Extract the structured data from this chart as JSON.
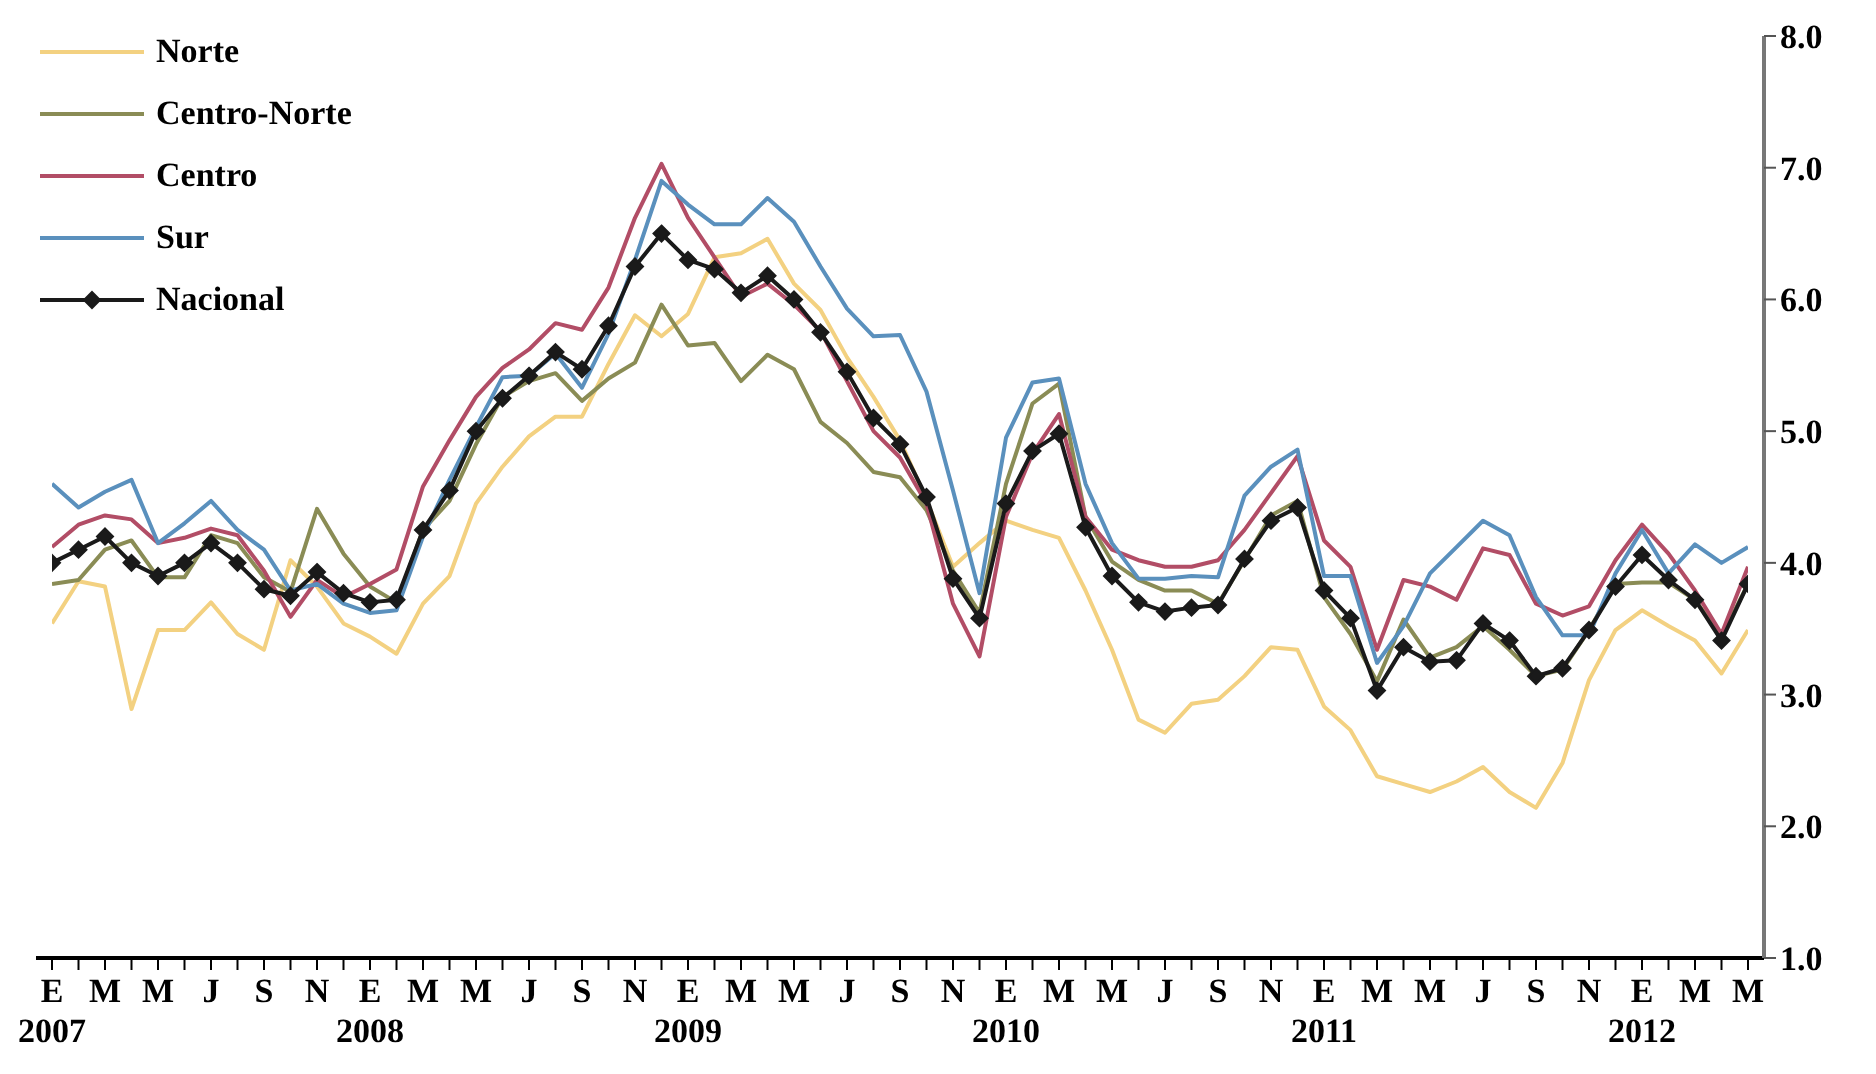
{
  "chart_data": {
    "type": "line",
    "categories": [
      "E\n2007",
      null,
      "M",
      null,
      "M",
      null,
      "J",
      null,
      "S",
      null,
      "N",
      null,
      "E\n2008",
      null,
      "M",
      null,
      "M",
      null,
      "J",
      null,
      "S",
      null,
      "N",
      null,
      "E\n2009",
      null,
      "M",
      null,
      "M",
      null,
      "J",
      null,
      "S",
      null,
      "N",
      null,
      "E\n2010",
      null,
      "M",
      null,
      "M",
      null,
      "J",
      null,
      "S",
      null,
      "N",
      null,
      "E\n2011",
      null,
      "M",
      null,
      "M",
      null,
      "J",
      null,
      "S",
      null,
      "N",
      null,
      "E\n2012",
      null,
      "M",
      null,
      "M"
    ],
    "series": [
      {
        "name": "Norte",
        "color": "#f3d181",
        "marker": "none",
        "values": [
          3.54,
          3.86,
          3.82,
          2.89,
          3.49,
          3.49,
          3.7,
          3.46,
          3.34,
          4.02,
          3.82,
          3.54,
          3.44,
          3.31,
          3.69,
          3.9,
          4.45,
          4.73,
          4.96,
          5.11,
          5.11,
          5.51,
          5.88,
          5.72,
          5.89,
          6.32,
          6.35,
          6.46,
          6.12,
          5.92,
          5.56,
          5.26,
          4.93,
          4.48,
          3.97,
          4.15,
          4.32,
          4.25,
          4.19,
          3.79,
          3.34,
          2.81,
          2.71,
          2.93,
          2.96,
          3.14,
          3.36,
          3.34,
          2.91,
          2.73,
          2.38,
          2.32,
          2.26,
          2.34,
          2.45,
          2.26,
          2.14,
          2.48,
          3.11,
          3.49,
          3.64,
          3.52,
          3.41,
          3.16,
          3.49
        ]
      },
      {
        "name": "Centro-Norte",
        "color": "#8a8c55",
        "marker": "none",
        "values": [
          3.84,
          3.87,
          4.1,
          4.17,
          3.89,
          3.89,
          4.21,
          4.15,
          3.89,
          3.78,
          4.41,
          4.07,
          3.82,
          3.7,
          4.25,
          4.47,
          4.9,
          5.26,
          5.38,
          5.44,
          5.23,
          5.4,
          5.52,
          5.96,
          5.65,
          5.67,
          5.38,
          5.58,
          5.47,
          5.07,
          4.91,
          4.69,
          4.65,
          4.4,
          3.94,
          3.62,
          4.6,
          5.21,
          5.36,
          4.35,
          4.01,
          3.87,
          3.79,
          3.79,
          3.69,
          4.02,
          4.36,
          4.47,
          3.74,
          3.46,
          3.1,
          3.57,
          3.28,
          3.36,
          3.52,
          3.34,
          3.14,
          3.19,
          3.49,
          3.84,
          3.85,
          3.85,
          3.72,
          3.44,
          3.84
        ]
      },
      {
        "name": "Centro",
        "color": "#b24d66",
        "marker": "none",
        "values": [
          4.12,
          4.29,
          4.36,
          4.33,
          4.15,
          4.19,
          4.26,
          4.21,
          3.94,
          3.59,
          3.87,
          3.74,
          3.84,
          3.95,
          4.58,
          4.93,
          5.26,
          5.48,
          5.62,
          5.82,
          5.77,
          6.09,
          6.62,
          7.03,
          6.62,
          6.32,
          6.02,
          6.12,
          5.96,
          5.76,
          5.38,
          5.0,
          4.8,
          4.45,
          3.69,
          3.29,
          4.35,
          4.83,
          5.13,
          4.35,
          4.1,
          4.02,
          3.97,
          3.97,
          4.02,
          4.25,
          4.53,
          4.81,
          4.17,
          3.97,
          3.34,
          3.87,
          3.82,
          3.72,
          4.11,
          4.06,
          3.69,
          3.6,
          3.67,
          4.02,
          4.29,
          4.07,
          3.79,
          3.46,
          3.97
        ]
      },
      {
        "name": "Sur",
        "color": "#5a90bd",
        "marker": "none",
        "values": [
          4.6,
          4.42,
          4.54,
          4.63,
          4.15,
          4.3,
          4.47,
          4.25,
          4.1,
          3.79,
          3.84,
          3.69,
          3.62,
          3.64,
          4.2,
          4.63,
          5.03,
          5.41,
          5.42,
          5.59,
          5.33,
          5.74,
          6.3,
          6.9,
          6.72,
          6.57,
          6.57,
          6.77,
          6.59,
          6.25,
          5.93,
          5.72,
          5.73,
          5.3,
          4.55,
          3.77,
          4.95,
          5.37,
          5.4,
          4.6,
          4.15,
          3.88,
          3.88,
          3.9,
          3.89,
          4.51,
          4.73,
          4.86,
          3.9,
          3.9,
          3.24,
          3.52,
          3.92,
          4.12,
          4.32,
          4.21,
          3.74,
          3.45,
          3.45,
          3.92,
          4.25,
          3.92,
          4.14,
          4.0,
          4.12
        ]
      },
      {
        "name": "Nacional",
        "color": "#1a1a1a",
        "marker": "diamond",
        "values": [
          4.0,
          4.1,
          4.2,
          4.0,
          3.9,
          4.0,
          4.15,
          4.0,
          3.8,
          3.75,
          3.93,
          3.77,
          3.7,
          3.72,
          4.25,
          4.55,
          5.0,
          5.25,
          5.42,
          5.6,
          5.47,
          5.8,
          6.25,
          6.5,
          6.3,
          6.23,
          6.05,
          6.18,
          6.0,
          5.75,
          5.45,
          5.1,
          4.9,
          4.5,
          3.88,
          3.58,
          4.45,
          4.85,
          4.98,
          4.27,
          3.9,
          3.7,
          3.63,
          3.66,
          3.68,
          4.03,
          4.32,
          4.42,
          3.79,
          3.58,
          3.03,
          3.36,
          3.25,
          3.26,
          3.54,
          3.41,
          3.14,
          3.2,
          3.49,
          3.82,
          4.06,
          3.87,
          3.72,
          3.41,
          3.84
        ]
      }
    ],
    "ylim": [
      1,
      8
    ],
    "yticks": [
      {
        "value": 1,
        "label": "1.0"
      },
      {
        "value": 2,
        "label": "2.0"
      },
      {
        "value": 3,
        "label": "3.0"
      },
      {
        "value": 4,
        "label": "4.0"
      },
      {
        "value": 5,
        "label": "5.0"
      },
      {
        "value": 6,
        "label": "6.0"
      },
      {
        "value": 7,
        "label": "7.0"
      },
      {
        "value": 8,
        "label": "8.0"
      }
    ],
    "grid": false,
    "legend": "top left",
    "line_style": "solid"
  }
}
